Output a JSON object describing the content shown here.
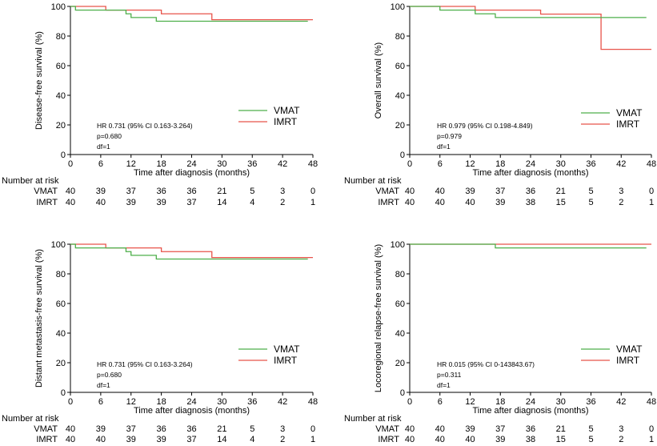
{
  "chart_data": [
    {
      "type": "line",
      "xlabel": "Time after diagnosis (months)",
      "ylabel": "Disease-free survival (%)",
      "xlim": [
        0,
        48
      ],
      "ylim": [
        0,
        100
      ],
      "xticks": [
        0,
        6,
        12,
        18,
        24,
        30,
        36,
        42,
        48
      ],
      "yticks": [
        0,
        20,
        40,
        60,
        80,
        100
      ],
      "legend": "right-middle",
      "series": [
        {
          "name": "VMAT",
          "color": "#4daf4a",
          "x": [
            0,
            1,
            11,
            12,
            17,
            47
          ],
          "y": [
            100,
            97.5,
            95,
            92.5,
            90,
            90
          ]
        },
        {
          "name": "IMRT",
          "color": "#e8534a",
          "x": [
            0,
            7,
            18,
            28,
            48
          ],
          "y": [
            100,
            97.5,
            95,
            91,
            91
          ]
        }
      ],
      "annotation": [
        "HR 0.731 (95% CI 0.163-3.264)",
        "p=0.680",
        "df=1"
      ],
      "risk_table": {
        "title": "Number at risk",
        "rows": [
          {
            "label": "VMAT",
            "values": [
              "40",
              "39",
              "37",
              "36",
              "36",
              "21",
              "5",
              "3",
              "0"
            ]
          },
          {
            "label": "IMRT",
            "values": [
              "40",
              "40",
              "39",
              "39",
              "37",
              "14",
              "4",
              "2",
              "1"
            ]
          }
        ]
      }
    },
    {
      "type": "line",
      "xlabel": "Time after diagnosis (months)",
      "ylabel": "Overall survival (%)",
      "xlim": [
        0,
        48
      ],
      "ylim": [
        0,
        100
      ],
      "xticks": [
        0,
        6,
        12,
        18,
        24,
        30,
        36,
        42,
        48
      ],
      "yticks": [
        0,
        20,
        40,
        60,
        80,
        100
      ],
      "legend": "right-middle",
      "series": [
        {
          "name": "VMAT",
          "color": "#4daf4a",
          "x": [
            0,
            6,
            13,
            17,
            47
          ],
          "y": [
            100,
            97.5,
            95,
            92.5,
            92.5
          ]
        },
        {
          "name": "IMRT",
          "color": "#e8534a",
          "x": [
            0,
            13,
            26,
            38,
            48
          ],
          "y": [
            100,
            97.5,
            94.8,
            71,
            71
          ]
        }
      ],
      "annotation": [
        "HR 0.979 (95% CI 0.198-4.849)",
        "p=0.979",
        "df=1"
      ],
      "risk_table": {
        "title": "Number at risk",
        "rows": [
          {
            "label": "VMAT",
            "values": [
              "40",
              "40",
              "39",
              "37",
              "36",
              "21",
              "5",
              "3",
              "0"
            ]
          },
          {
            "label": "IMRT",
            "values": [
              "40",
              "40",
              "40",
              "39",
              "38",
              "15",
              "5",
              "2",
              "1"
            ]
          }
        ]
      }
    },
    {
      "type": "line",
      "xlabel": "Time after diagnosis (months)",
      "ylabel": "Distant metastasis-free survival (%)",
      "xlim": [
        0,
        48
      ],
      "ylim": [
        0,
        100
      ],
      "xticks": [
        0,
        6,
        12,
        18,
        24,
        30,
        36,
        42,
        48
      ],
      "yticks": [
        0,
        20,
        40,
        60,
        80,
        100
      ],
      "legend": "right-middle",
      "series": [
        {
          "name": "VMAT",
          "color": "#4daf4a",
          "x": [
            0,
            1,
            11,
            12,
            17,
            47
          ],
          "y": [
            100,
            97.5,
            95,
            92.5,
            90,
            90
          ]
        },
        {
          "name": "IMRT",
          "color": "#e8534a",
          "x": [
            0,
            7,
            18,
            28,
            48
          ],
          "y": [
            100,
            97.5,
            95,
            91,
            91
          ]
        }
      ],
      "annotation": [
        "HR 0.731 (95% CI 0.163-3.264)",
        "p=0.680",
        "df=1"
      ],
      "risk_table": {
        "title": "Number at risk",
        "rows": [
          {
            "label": "VMAT",
            "values": [
              "40",
              "39",
              "37",
              "36",
              "36",
              "21",
              "5",
              "3",
              "0"
            ]
          },
          {
            "label": "IMRT",
            "values": [
              "40",
              "40",
              "39",
              "39",
              "37",
              "14",
              "4",
              "2",
              "1"
            ]
          }
        ]
      }
    },
    {
      "type": "line",
      "xlabel": "Time after diagnosis (months)",
      "ylabel": "Locoregional relapse-free survival (%)",
      "xlim": [
        0,
        48
      ],
      "ylim": [
        0,
        100
      ],
      "xticks": [
        0,
        6,
        12,
        18,
        24,
        30,
        36,
        42,
        48
      ],
      "yticks": [
        0,
        20,
        40,
        60,
        80,
        100
      ],
      "legend": "right-middle",
      "series": [
        {
          "name": "VMAT",
          "color": "#4daf4a",
          "x": [
            0,
            17,
            47
          ],
          "y": [
            100,
            97.5,
            97.5
          ]
        },
        {
          "name": "IMRT",
          "color": "#e8534a",
          "x": [
            0,
            48
          ],
          "y": [
            100,
            100
          ]
        }
      ],
      "annotation": [
        "HR 0.015 (95% CI 0-143843.67)",
        "p=0.311",
        "df=1"
      ],
      "risk_table": {
        "title": "Number at risk",
        "rows": [
          {
            "label": "VMAT",
            "values": [
              "40",
              "40",
              "39",
              "37",
              "36",
              "21",
              "5",
              "3",
              "0"
            ]
          },
          {
            "label": "IMRT",
            "values": [
              "40",
              "40",
              "40",
              "39",
              "38",
              "15",
              "5",
              "2",
              "1"
            ]
          }
        ]
      }
    }
  ]
}
